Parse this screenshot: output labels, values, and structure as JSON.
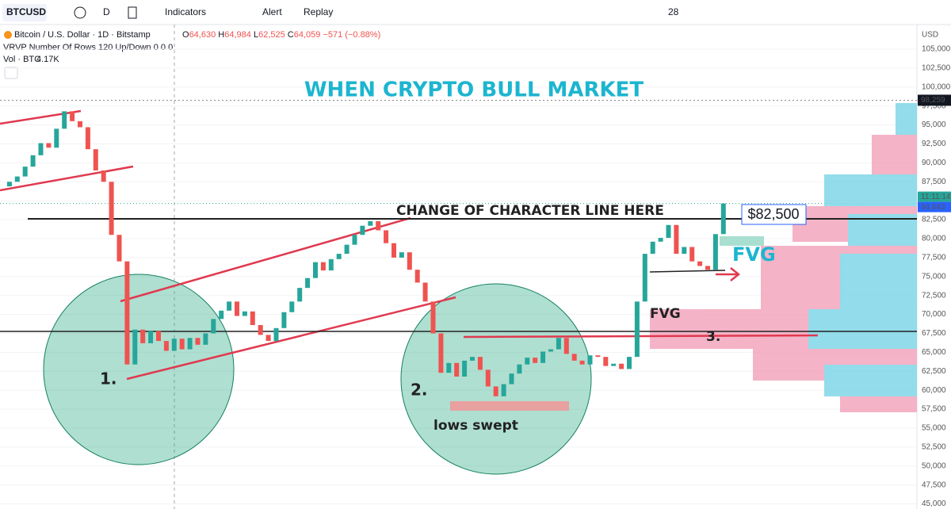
{
  "toolbar": {
    "symbol": "BTCUSD",
    "interval": "D",
    "buttons": [
      "Indicators",
      "Alert",
      "Replay"
    ],
    "line_width": "28"
  },
  "legend": {
    "title": "Bitcoin / U.S. Dollar · 1D · Bitstamp",
    "ohlc": [
      {
        "label": "O",
        "value": "64,630"
      },
      {
        "label": "H",
        "value": "64,984"
      },
      {
        "label": "L",
        "value": "62,525"
      },
      {
        "label": "C",
        "value": "64,059"
      }
    ],
    "change": "−571 (−0.88%)",
    "indicator": "VRVP Number Of Rows 120 Up/Down 0 0 0",
    "volume_label": "Vol · BTC",
    "volume_value": "4.17K"
  },
  "price_axis": {
    "currency": "USD",
    "ticks": [
      {
        "value": 105000,
        "label": "105,000"
      },
      {
        "value": 102500,
        "label": "102,500"
      },
      {
        "value": 100000,
        "label": "100,000"
      },
      {
        "value": 97500,
        "label": "97,500"
      },
      {
        "value": 95000,
        "label": "95,000"
      },
      {
        "value": 92500,
        "label": "92,500"
      },
      {
        "value": 90000,
        "label": "90,000"
      },
      {
        "value": 87500,
        "label": "87,500"
      },
      {
        "value": 85000,
        "label": "85,000"
      },
      {
        "value": 82500,
        "label": "82,500"
      },
      {
        "value": 80000,
        "label": "80,000"
      },
      {
        "value": 77500,
        "label": "77,500"
      },
      {
        "value": 75000,
        "label": "75,000"
      },
      {
        "value": 72500,
        "label": "72,500"
      },
      {
        "value": 70000,
        "label": "70,000"
      },
      {
        "value": 67500,
        "label": "67,500"
      },
      {
        "value": 65000,
        "label": "65,000"
      },
      {
        "value": 62500,
        "label": "62,500"
      },
      {
        "value": 60000,
        "label": "60,000"
      },
      {
        "value": 57500,
        "label": "57,500"
      },
      {
        "value": 55000,
        "label": "55,000"
      },
      {
        "value": 52500,
        "label": "52,500"
      },
      {
        "value": 50000,
        "label": "50,000"
      },
      {
        "value": 47500,
        "label": "47,500"
      },
      {
        "value": 45000,
        "label": "45,000"
      }
    ],
    "high_marker": {
      "value": 98259,
      "label": "98,259"
    },
    "last_price": {
      "value": 84643,
      "label": "84,643"
    },
    "countdown": "11:11:14"
  },
  "candles": {
    "closes": [
      86900,
      87500,
      88200,
      89500,
      91000,
      92600,
      92000,
      94500,
      96800,
      95500,
      94700,
      91800,
      89000,
      87500,
      80500,
      77000,
      63400,
      68000,
      66200,
      67800,
      66500,
      65200,
      66800,
      65400,
      66900,
      66000,
      67500,
      69400,
      70500,
      71700,
      69800,
      70400,
      68600,
      67300,
      66500,
      68200,
      70300,
      71700,
      73500,
      74800,
      76900,
      75800,
      77300,
      78000,
      79200,
      80500,
      81700,
      82300,
      81100,
      79400,
      77500,
      78200,
      75900,
      74200,
      71700,
      67500,
      62300,
      63600,
      61800,
      63900,
      64400,
      62700,
      60500,
      59200,
      60800,
      62200,
      63400,
      64300,
      63600,
      65100,
      65400,
      66900,
      64800,
      63900,
      63400,
      64600,
      64400,
      63200,
      63500,
      62800,
      64400,
      71700,
      78000,
      79600,
      80100,
      81800,
      78000,
      78900,
      77000,
      76400,
      75900,
      80600,
      84643
    ]
  },
  "annotations": {
    "title": "WHEN CRYPTO BULL MARKET",
    "choch": "CHANGE OF CHARACTER LINE HERE",
    "level": "$82,500",
    "fvg": [
      "FVG",
      "FVG"
    ],
    "steps": [
      "1.",
      "2.",
      "3."
    ],
    "swept": "lows swept"
  }
}
